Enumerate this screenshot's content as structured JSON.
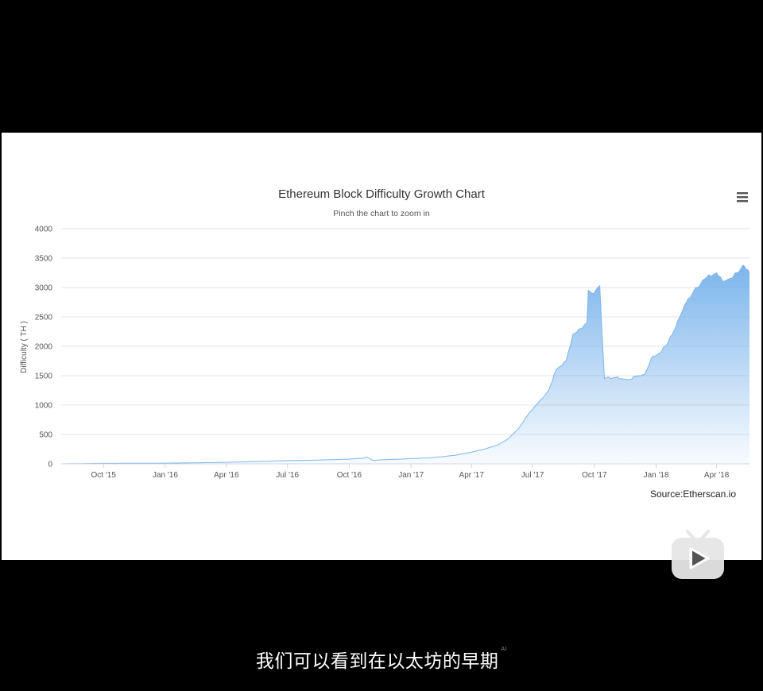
{
  "caption": {
    "text": "我们可以看到在以太坊的早期",
    "ai_mark": "AI"
  },
  "watermark": {
    "icon": "bilibili-play-icon"
  },
  "chart": {
    "menu_icon": "hamburger-menu-icon",
    "credit": "Source:Etherscan.io"
  },
  "chart_data": {
    "type": "area",
    "title": "Ethereum Block Difficulty Growth Chart",
    "subtitle": "Pinch the chart to zoom in",
    "ylabel": "Difficulty ( TH )",
    "xlabel": "",
    "ylim": [
      0,
      4000
    ],
    "yticks": [
      0,
      500,
      1000,
      1500,
      2000,
      2500,
      3000,
      3500,
      4000
    ],
    "xlim": [
      "2015-07-30",
      "2018-05-20"
    ],
    "xticks": [
      {
        "date": "2015-10-01",
        "label": "Oct '15"
      },
      {
        "date": "2016-01-01",
        "label": "Jan '16"
      },
      {
        "date": "2016-04-01",
        "label": "Apr '16"
      },
      {
        "date": "2016-07-01",
        "label": "Jul '16"
      },
      {
        "date": "2016-10-01",
        "label": "Oct '16"
      },
      {
        "date": "2017-01-01",
        "label": "Jan '17"
      },
      {
        "date": "2017-04-01",
        "label": "Apr '17"
      },
      {
        "date": "2017-07-01",
        "label": "Jul '17"
      },
      {
        "date": "2017-10-01",
        "label": "Oct '17"
      },
      {
        "date": "2018-01-01",
        "label": "Jan '18"
      },
      {
        "date": "2018-04-01",
        "label": "Apr '18"
      }
    ],
    "grid": true,
    "legend": "none",
    "color": "#7cb5ec",
    "series": [
      {
        "values": [
          [
            "2015-07-30",
            0.1
          ],
          [
            "2015-09-01",
            5
          ],
          [
            "2015-10-01",
            8
          ],
          [
            "2015-11-01",
            9
          ],
          [
            "2015-12-01",
            10
          ],
          [
            "2016-01-01",
            12
          ],
          [
            "2016-02-01",
            15
          ],
          [
            "2016-03-01",
            20
          ],
          [
            "2016-04-01",
            25
          ],
          [
            "2016-05-01",
            35
          ],
          [
            "2016-06-01",
            45
          ],
          [
            "2016-07-01",
            55
          ],
          [
            "2016-08-01",
            60
          ],
          [
            "2016-09-01",
            70
          ],
          [
            "2016-10-01",
            80
          ],
          [
            "2016-10-20",
            95
          ],
          [
            "2016-10-28",
            112
          ],
          [
            "2016-11-05",
            60
          ],
          [
            "2016-11-20",
            70
          ],
          [
            "2016-12-15",
            80
          ],
          [
            "2017-01-01",
            90
          ],
          [
            "2017-01-25",
            100
          ],
          [
            "2017-02-15",
            120
          ],
          [
            "2017-03-10",
            150
          ],
          [
            "2017-04-01",
            200
          ],
          [
            "2017-04-20",
            250
          ],
          [
            "2017-05-10",
            320
          ],
          [
            "2017-05-25",
            420
          ],
          [
            "2017-06-10",
            600
          ],
          [
            "2017-06-25",
            850
          ],
          [
            "2017-07-10",
            1050
          ],
          [
            "2017-07-25",
            1250
          ],
          [
            "2017-08-05",
            1600
          ],
          [
            "2017-08-20",
            1750
          ],
          [
            "2017-08-30",
            2200
          ],
          [
            "2017-09-10",
            2300
          ],
          [
            "2017-09-20",
            2400
          ],
          [
            "2017-09-22",
            2950
          ],
          [
            "2017-09-28",
            2900
          ],
          [
            "2017-10-03",
            2950
          ],
          [
            "2017-10-06",
            3000
          ],
          [
            "2017-10-09",
            3030
          ],
          [
            "2017-10-16",
            1450
          ],
          [
            "2017-11-01",
            1470
          ],
          [
            "2017-11-20",
            1430
          ],
          [
            "2017-12-05",
            1500
          ],
          [
            "2017-12-15",
            1520
          ],
          [
            "2017-12-25",
            1800
          ],
          [
            "2018-01-05",
            1880
          ],
          [
            "2018-01-15",
            2000
          ],
          [
            "2018-01-25",
            2200
          ],
          [
            "2018-02-05",
            2500
          ],
          [
            "2018-02-15",
            2750
          ],
          [
            "2018-03-01",
            3000
          ],
          [
            "2018-03-15",
            3150
          ],
          [
            "2018-04-01",
            3250
          ],
          [
            "2018-04-10",
            3100
          ],
          [
            "2018-04-20",
            3150
          ],
          [
            "2018-05-01",
            3250
          ],
          [
            "2018-05-10",
            3380
          ],
          [
            "2018-05-15",
            3300
          ],
          [
            "2018-05-20",
            3250
          ]
        ]
      }
    ]
  }
}
